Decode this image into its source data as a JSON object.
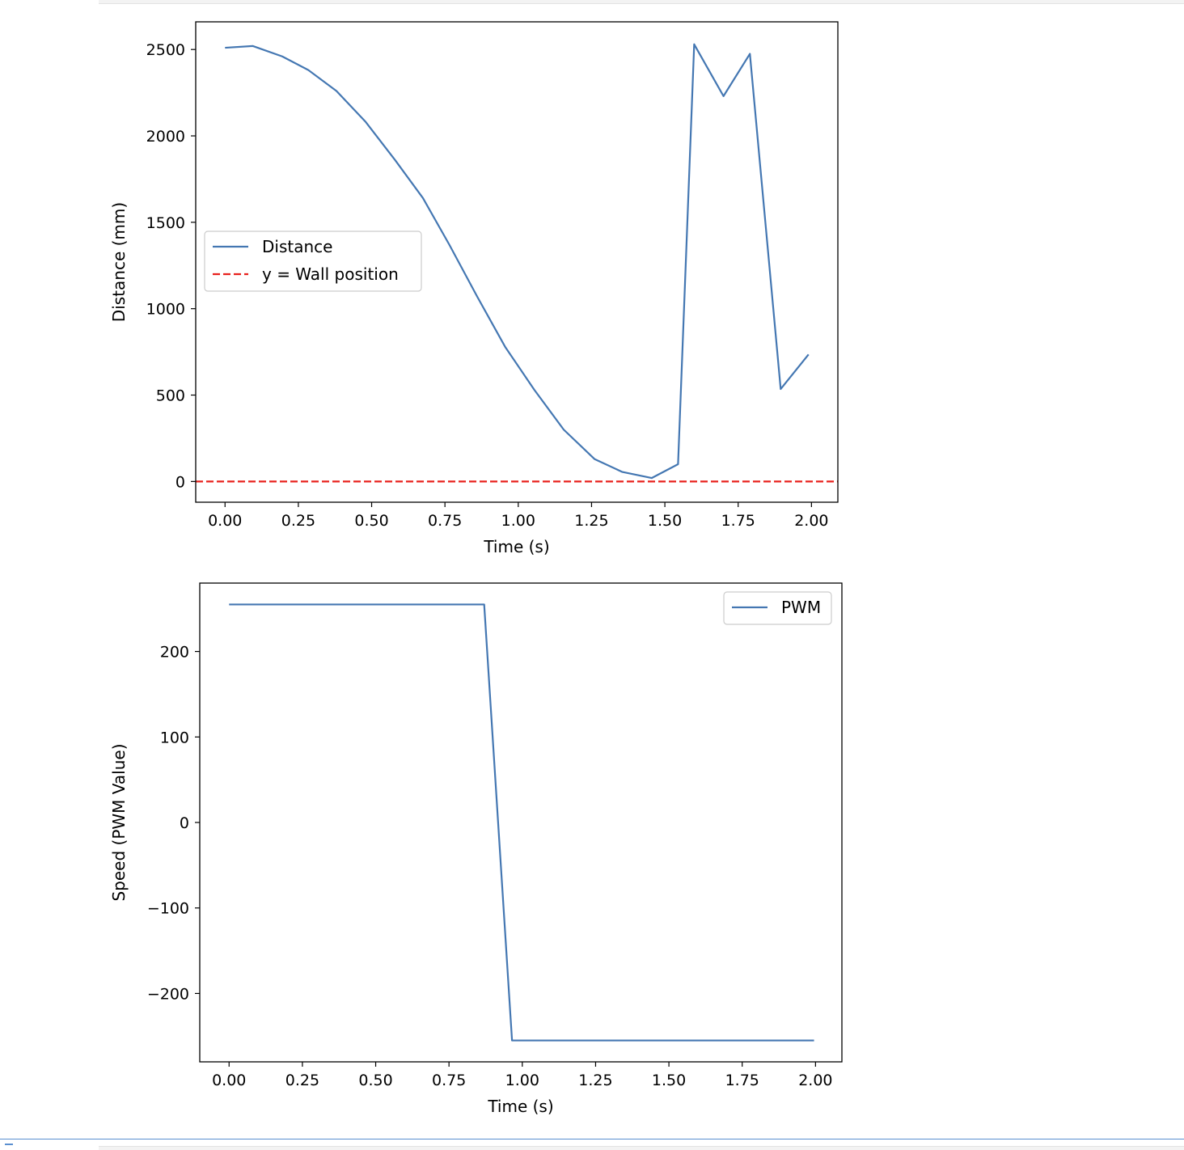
{
  "chart_data": [
    {
      "type": "line",
      "xlabel": "Time (s)",
      "ylabel": "Distance (mm)",
      "xlim": [
        -0.1,
        2.09
      ],
      "ylim": [
        -120,
        2660
      ],
      "xticks": [
        0,
        0.25,
        0.5,
        0.75,
        1.0,
        1.25,
        1.5,
        1.75,
        2.0
      ],
      "xtick_labels": [
        "0.00",
        "0.25",
        "0.50",
        "0.75",
        "1.00",
        "1.25",
        "1.50",
        "1.75",
        "2.00"
      ],
      "yticks": [
        0,
        500,
        1000,
        1500,
        2000,
        2500
      ],
      "ytick_labels": [
        "0",
        "500",
        "1000",
        "1500",
        "2000",
        "2500"
      ],
      "legend_position": "center-left",
      "grid": false,
      "series": [
        {
          "name": "Distance",
          "color": "#4477b2",
          "style": "solid",
          "x": [
            0.0,
            0.095,
            0.195,
            0.285,
            0.38,
            0.48,
            0.58,
            0.675,
            0.765,
            0.86,
            0.955,
            1.055,
            1.155,
            1.26,
            1.355,
            1.455,
            1.545,
            1.6,
            1.7,
            1.79,
            1.895,
            1.99
          ],
          "y": [
            2510,
            2520,
            2460,
            2380,
            2260,
            2080,
            1860,
            1640,
            1370,
            1070,
            780,
            530,
            300,
            130,
            55,
            20,
            100,
            2530,
            2230,
            2475,
            535,
            735
          ]
        },
        {
          "name": "y = Wall position",
          "color": "#e8201c",
          "style": "dashed",
          "x": [
            -0.1,
            2.09
          ],
          "y": [
            0,
            0
          ]
        }
      ]
    },
    {
      "type": "line",
      "xlabel": "Time (s)",
      "ylabel": "Speed (PWM Value)",
      "xlim": [
        -0.1,
        2.09
      ],
      "ylim": [
        -280,
        280
      ],
      "xticks": [
        0,
        0.25,
        0.5,
        0.75,
        1.0,
        1.25,
        1.5,
        1.75,
        2.0
      ],
      "xtick_labels": [
        "0.00",
        "0.25",
        "0.50",
        "0.75",
        "1.00",
        "1.25",
        "1.50",
        "1.75",
        "2.00"
      ],
      "yticks": [
        -200,
        -100,
        0,
        100,
        200
      ],
      "ytick_labels": [
        "−200",
        "−100",
        "0",
        "100",
        "200"
      ],
      "legend_position": "upper right",
      "grid": false,
      "series": [
        {
          "name": "PWM",
          "color": "#4477b2",
          "style": "solid",
          "x": [
            0.0,
            0.87,
            0.965,
            1.995
          ],
          "y": [
            255,
            255,
            -255,
            -255
          ]
        }
      ]
    }
  ]
}
